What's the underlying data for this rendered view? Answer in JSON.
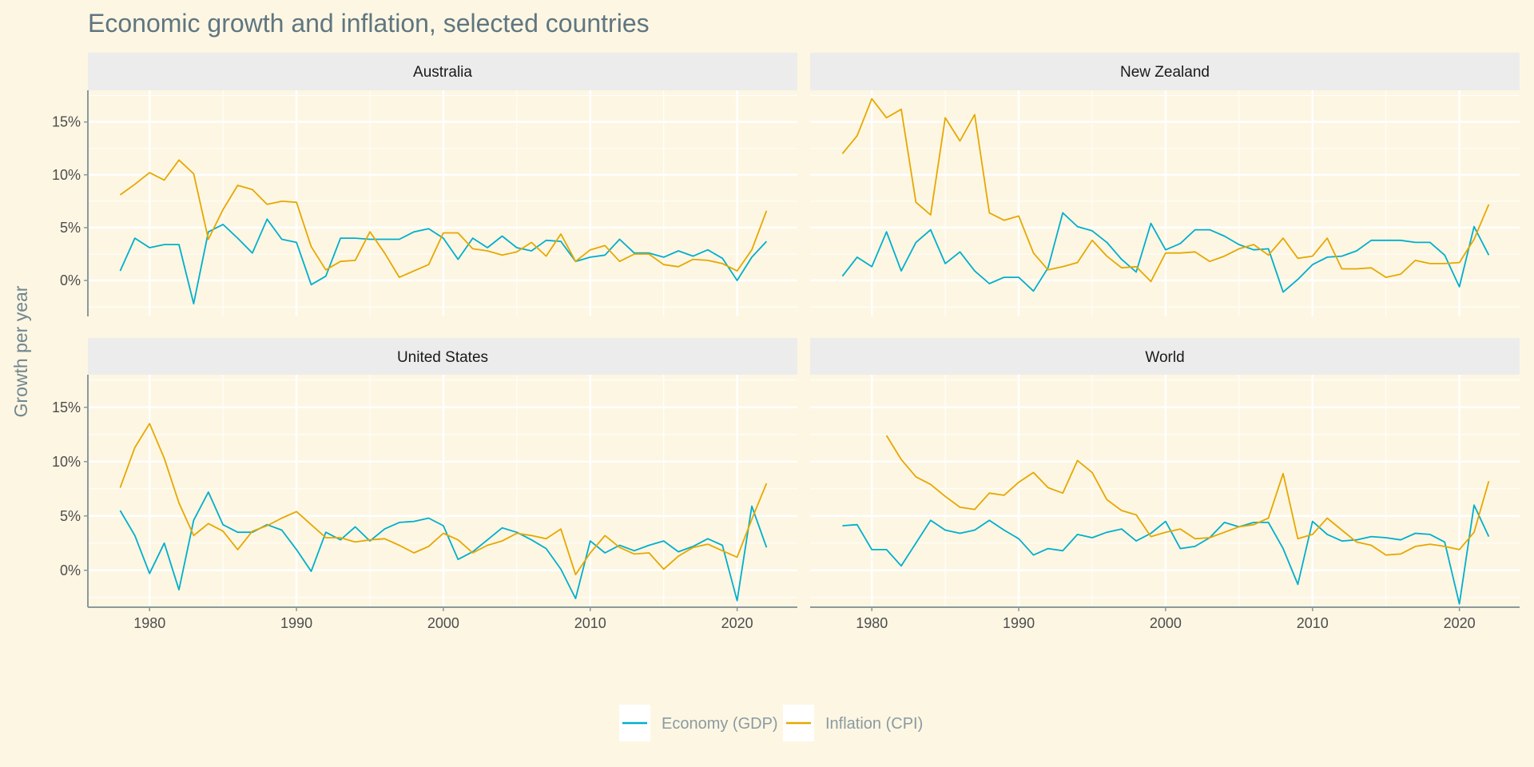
{
  "chart_data": {
    "type": "line",
    "title": "Economic growth and inflation, selected countries",
    "xlabel": "",
    "ylabel": "Growth per year",
    "xlim": [
      1975.8,
      2024.1
    ],
    "ylim": [
      -3.4,
      18.0
    ],
    "x_ticks": [
      1980,
      1990,
      2000,
      2010,
      2020
    ],
    "x_tick_labels": [
      "1980",
      "1990",
      "2000",
      "2010",
      "2020"
    ],
    "y_ticks": [
      0,
      5,
      10,
      15
    ],
    "y_tick_labels": [
      "0%",
      "5%",
      "10%",
      "15%"
    ],
    "grid": true,
    "legend_position": "bottom",
    "legend": [
      {
        "key": "gdp",
        "label": "Economy (GDP)",
        "color": "#00afcc"
      },
      {
        "key": "cpi",
        "label": "Inflation (CPI)",
        "color": "#e6a800"
      }
    ],
    "start_year": 1978,
    "panels": [
      {
        "name": "Australia",
        "gdp": [
          0.9,
          4.0,
          3.1,
          3.4,
          3.4,
          -2.2,
          4.6,
          5.3,
          4.0,
          2.6,
          5.8,
          3.9,
          3.6,
          -0.4,
          0.4,
          4.0,
          4.0,
          3.9,
          3.9,
          3.9,
          4.6,
          4.9,
          4.0,
          2.0,
          4.0,
          3.1,
          4.2,
          3.1,
          2.8,
          3.8,
          3.7,
          1.8,
          2.2,
          2.4,
          3.9,
          2.6,
          2.6,
          2.2,
          2.8,
          2.3,
          2.9,
          2.1,
          0.0,
          2.2,
          3.7
        ],
        "cpi": [
          8.1,
          9.1,
          10.2,
          9.5,
          11.4,
          10.1,
          3.9,
          6.7,
          9.0,
          8.6,
          7.2,
          7.5,
          7.4,
          3.2,
          1.0,
          1.8,
          1.9,
          4.6,
          2.6,
          0.3,
          0.9,
          1.5,
          4.5,
          4.5,
          3.0,
          2.8,
          2.4,
          2.7,
          3.6,
          2.3,
          4.4,
          1.8,
          2.9,
          3.3,
          1.8,
          2.5,
          2.5,
          1.5,
          1.3,
          2.0,
          1.9,
          1.6,
          0.9,
          2.9,
          6.6
        ]
      },
      {
        "name": "New Zealand",
        "gdp": [
          0.4,
          2.2,
          1.3,
          4.6,
          0.9,
          3.6,
          4.8,
          1.6,
          2.7,
          0.9,
          -0.3,
          0.3,
          0.3,
          -1.0,
          1.2,
          6.4,
          5.1,
          4.7,
          3.6,
          2.0,
          0.8,
          5.4,
          2.9,
          3.5,
          4.8,
          4.8,
          4.2,
          3.4,
          2.9,
          3.0,
          -1.1,
          0.1,
          1.5,
          2.2,
          2.3,
          2.8,
          3.8,
          3.8,
          3.8,
          3.6,
          3.6,
          2.4,
          -0.6,
          5.1,
          2.4
        ],
        "cpi": [
          12.0,
          13.7,
          17.2,
          15.4,
          16.2,
          7.4,
          6.2,
          15.4,
          13.2,
          15.7,
          6.4,
          5.7,
          6.1,
          2.6,
          1.0,
          1.3,
          1.7,
          3.8,
          2.3,
          1.2,
          1.3,
          -0.1,
          2.6,
          2.6,
          2.7,
          1.8,
          2.3,
          3.0,
          3.4,
          2.4,
          4.0,
          2.1,
          2.3,
          4.0,
          1.1,
          1.1,
          1.2,
          0.3,
          0.6,
          1.9,
          1.6,
          1.6,
          1.7,
          3.9,
          7.2
        ]
      },
      {
        "name": "United States",
        "gdp": [
          5.5,
          3.2,
          -0.3,
          2.5,
          -1.8,
          4.6,
          7.2,
          4.2,
          3.5,
          3.5,
          4.2,
          3.7,
          1.9,
          -0.1,
          3.5,
          2.8,
          4.0,
          2.7,
          3.8,
          4.4,
          4.5,
          4.8,
          4.1,
          1.0,
          1.7,
          2.8,
          3.9,
          3.5,
          2.8,
          2.0,
          0.1,
          -2.6,
          2.7,
          1.6,
          2.3,
          1.8,
          2.3,
          2.7,
          1.7,
          2.2,
          2.9,
          2.3,
          -2.8,
          5.9,
          2.1
        ],
        "cpi": [
          7.6,
          11.3,
          13.5,
          10.3,
          6.2,
          3.2,
          4.3,
          3.6,
          1.9,
          3.6,
          4.1,
          4.8,
          5.4,
          4.2,
          3.0,
          3.0,
          2.6,
          2.8,
          2.9,
          2.3,
          1.6,
          2.2,
          3.4,
          2.8,
          1.6,
          2.3,
          2.7,
          3.4,
          3.2,
          2.9,
          3.8,
          -0.4,
          1.6,
          3.2,
          2.1,
          1.5,
          1.6,
          0.1,
          1.3,
          2.1,
          2.4,
          1.8,
          1.2,
          4.7,
          8.0
        ]
      },
      {
        "name": "World",
        "gdp": [
          4.1,
          4.2,
          1.9,
          1.9,
          0.4,
          2.5,
          4.6,
          3.7,
          3.4,
          3.7,
          4.6,
          3.7,
          2.9,
          1.4,
          2.0,
          1.8,
          3.3,
          3.0,
          3.5,
          3.8,
          2.7,
          3.4,
          4.5,
          2.0,
          2.2,
          3.0,
          4.4,
          4.0,
          4.4,
          4.4,
          2.0,
          -1.3,
          4.5,
          3.3,
          2.7,
          2.8,
          3.1,
          3.0,
          2.8,
          3.4,
          3.3,
          2.6,
          -3.1,
          6.0,
          3.1
        ],
        "cpi": [
          null,
          null,
          null,
          12.4,
          10.2,
          8.6,
          7.9,
          6.8,
          5.8,
          5.6,
          7.1,
          6.9,
          8.1,
          9.0,
          7.6,
          7.1,
          10.1,
          9.0,
          6.5,
          5.5,
          5.1,
          3.1,
          3.5,
          3.8,
          2.9,
          3.0,
          3.5,
          4.0,
          4.2,
          4.8,
          8.9,
          2.9,
          3.3,
          4.8,
          3.7,
          2.6,
          2.3,
          1.4,
          1.5,
          2.2,
          2.4,
          2.2,
          1.9,
          3.5,
          8.2
        ]
      }
    ]
  }
}
